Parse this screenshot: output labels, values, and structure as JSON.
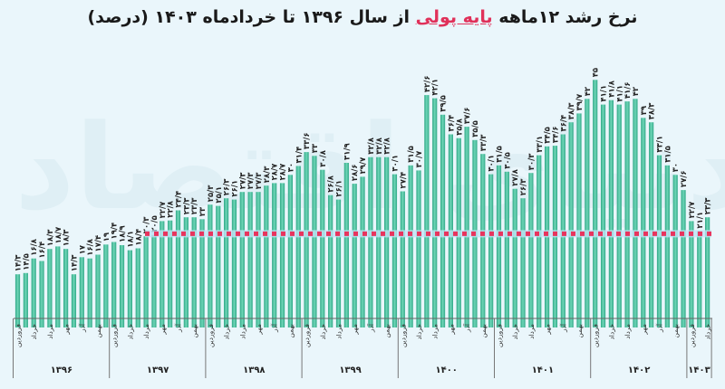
{
  "title": {
    "part1": "نرخ رشد ۱۲ماهه",
    "highlight": "پایه پولی",
    "part2": "از سال ۱۳۹۶ تا خردادماه ۱۴۰۳ (درصد)"
  },
  "watermark": "دنیای اقتصاد",
  "colors": {
    "bar": "#3fbf9b",
    "bar_light": "#a6e6d2",
    "highlight": "#e0315a",
    "ref_line": "#e8345e",
    "background": "#eaf6fb"
  },
  "chart_data": {
    "type": "bar",
    "title": "نرخ رشد ۱۲ماهه پایه پولی از سال ۱۳۹۶ تا خردادماه ۱۴۰۳ (درصد)",
    "xlabel": "",
    "ylabel": "درصد",
    "years": [
      {
        "label": "۱۳۹۶",
        "values": [
          14.3,
          14.5,
          16.8,
          16.4,
          18.3,
          18.7,
          18.3,
          14.3,
          17,
          16.8,
          17.4,
          19
        ]
      },
      {
        "label": "۱۳۹۷",
        "values": [
          19.4,
          18.9,
          18.1,
          18.4,
          20.3,
          20.5,
          22.7,
          22.8,
          24.4,
          23.3,
          23.3,
          23
        ]
      },
      {
        "label": "۱۳۹۸",
        "values": [
          25.3,
          25.1,
          26.3,
          26.1,
          27.3,
          27.3,
          27.3,
          28.3,
          28.7,
          28.7,
          30,
          31.4
        ]
      },
      {
        "label": "۱۳۹۹",
        "values": [
          33.6,
          33,
          30.8,
          26.8,
          26.1,
          31.9,
          28.6,
          29.7,
          32.8,
          32.8,
          32.8,
          30.1
        ]
      },
      {
        "label": "۱۴۰۰",
        "values": [
          27.4,
          31.5,
          30.7,
          42.6,
          42.1,
          39.5,
          36.4,
          35.8,
          37.6,
          35.5,
          33.3,
          30.1
        ]
      },
      {
        "label": "۱۴۰۱",
        "values": [
          31.5,
          30.5,
          27.8,
          26.3,
          30.3,
          33.1,
          34.5,
          34.6,
          36.4,
          38.3,
          39.7,
          42
        ]
      },
      {
        "label": "۱۴۰۲",
        "values": [
          45,
          41.1,
          41.8,
          41.1,
          41.6,
          42,
          39,
          38.3,
          33.1,
          31.5,
          30,
          27.6
        ]
      },
      {
        "label": "۱۴۰۳",
        "values": [
          22.7,
          21.1,
          23.3
        ]
      }
    ],
    "month_labels": [
      "فروردین",
      "",
      "خرداد",
      "",
      "مرداد",
      "",
      "مهر",
      "",
      "آذر",
      "",
      "بهمن",
      ""
    ],
    "reference_line": 20.7,
    "grid": false,
    "legend": "none"
  }
}
